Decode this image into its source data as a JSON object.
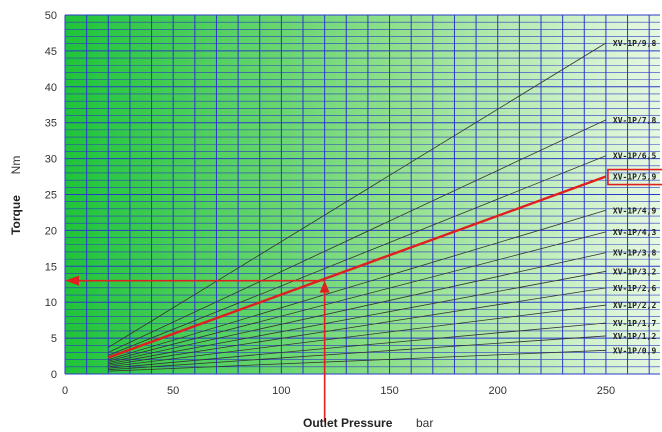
{
  "chart_data": {
    "type": "line",
    "xlabel": "Outlet Pressure",
    "xunit": "bar",
    "ylabel": "Torque",
    "yunit": "Nm",
    "xlim": [
      0,
      275
    ],
    "ylim": [
      0,
      50
    ],
    "x_ticks": [
      0,
      50,
      100,
      150,
      200,
      250
    ],
    "y_ticks": [
      0,
      5,
      10,
      15,
      20,
      25,
      30,
      35,
      40,
      45,
      50
    ],
    "grid": true,
    "series": [
      {
        "name": "XV-1P/9,8",
        "points": [
          [
            20,
            3.7
          ],
          [
            250,
            46.1
          ]
        ]
      },
      {
        "name": "XV-1P/7,8",
        "points": [
          [
            20,
            3.0
          ],
          [
            250,
            35.4
          ]
        ]
      },
      {
        "name": "XV-1P/6,5",
        "points": [
          [
            20,
            2.6
          ],
          [
            250,
            30.4
          ]
        ]
      },
      {
        "name": "XV-1P/5,9",
        "points": [
          [
            20,
            2.3
          ],
          [
            250,
            27.5
          ]
        ],
        "highlight": true
      },
      {
        "name": "XV-1P/4,9",
        "points": [
          [
            20,
            2.0
          ],
          [
            250,
            22.8
          ]
        ]
      },
      {
        "name": "XV-1P/4,3",
        "points": [
          [
            20,
            1.8
          ],
          [
            250,
            19.8
          ]
        ]
      },
      {
        "name": "XV-1P/3,8",
        "points": [
          [
            20,
            1.6
          ],
          [
            250,
            16.9
          ]
        ]
      },
      {
        "name": "XV-1P/3,2",
        "points": [
          [
            20,
            1.4
          ],
          [
            250,
            14.3
          ]
        ]
      },
      {
        "name": "XV-1P/2,6",
        "points": [
          [
            20,
            1.2
          ],
          [
            250,
            12.0
          ]
        ]
      },
      {
        "name": "XV-1P/2,2",
        "points": [
          [
            20,
            1.0
          ],
          [
            250,
            9.6
          ]
        ]
      },
      {
        "name": "XV-1P/1,7",
        "points": [
          [
            20,
            0.8
          ],
          [
            250,
            7.1
          ]
        ]
      },
      {
        "name": "XV-1P/1,2",
        "points": [
          [
            20,
            0.6
          ],
          [
            250,
            5.3
          ]
        ]
      },
      {
        "name": "XV-1P/0,9",
        "points": [
          [
            20,
            0.4
          ],
          [
            250,
            3.3
          ]
        ]
      }
    ],
    "annotations": {
      "highlight_color": "#e02020",
      "example_pressure": 120,
      "example_torque": 13
    }
  }
}
